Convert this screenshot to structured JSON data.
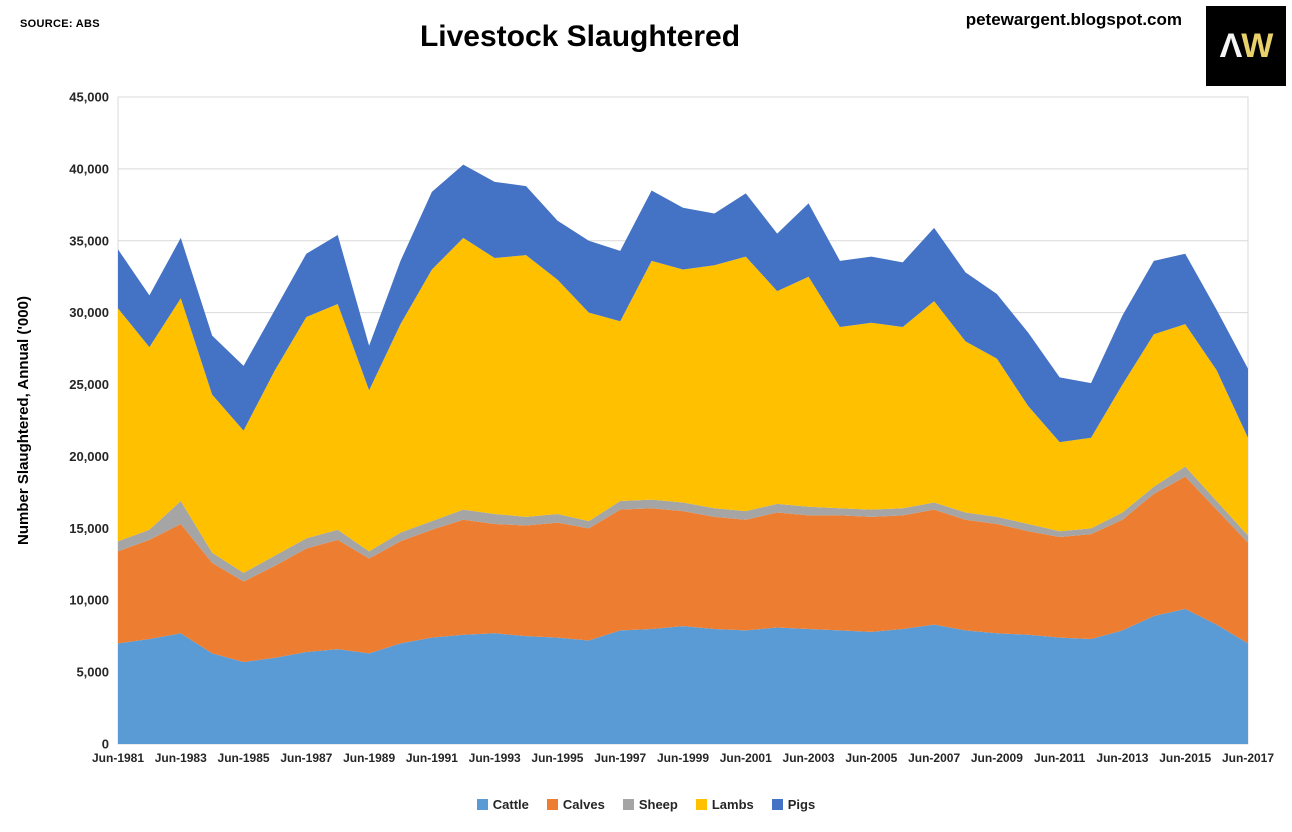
{
  "header": {
    "source": "SOURCE: ABS",
    "title": "Livestock Slaughtered",
    "watermark": "petewargent.blogspot.com",
    "logo": {
      "letter1": "Λ",
      "letter2": "W",
      "bg": "#000000"
    }
  },
  "chart_data": {
    "type": "area",
    "stacked": true,
    "title": "Livestock Slaughtered",
    "ylabel": "Number Slaughtered, Annual ('000)",
    "ylim": [
      0,
      45000
    ],
    "ytick_step": 5000,
    "grid": true,
    "legend_position": "bottom",
    "x_tick_every": 2,
    "x": [
      "Jun-1981",
      "Jun-1982",
      "Jun-1983",
      "Jun-1984",
      "Jun-1985",
      "Jun-1986",
      "Jun-1987",
      "Jun-1988",
      "Jun-1989",
      "Jun-1990",
      "Jun-1991",
      "Jun-1992",
      "Jun-1993",
      "Jun-1994",
      "Jun-1995",
      "Jun-1996",
      "Jun-1997",
      "Jun-1998",
      "Jun-1999",
      "Jun-2000",
      "Jun-2001",
      "Jun-2002",
      "Jun-2003",
      "Jun-2004",
      "Jun-2005",
      "Jun-2006",
      "Jun-2007",
      "Jun-2008",
      "Jun-2009",
      "Jun-2010",
      "Jun-2011",
      "Jun-2012",
      "Jun-2013",
      "Jun-2014",
      "Jun-2015",
      "Jun-2016",
      "Jun-2017"
    ],
    "series": [
      {
        "name": "Cattle",
        "color": "#5B9BD5",
        "values": [
          7000,
          7300,
          7700,
          6300,
          5700,
          6000,
          6400,
          6600,
          6300,
          7000,
          7400,
          7600,
          7700,
          7500,
          7400,
          7200,
          7900,
          8000,
          8200,
          8000,
          7900,
          8100,
          8000,
          7900,
          7800,
          8000,
          8300,
          7900,
          7700,
          7600,
          7400,
          7300,
          7900,
          8900,
          9400,
          8300,
          7000
        ]
      },
      {
        "name": "Calves",
        "color": "#ED7D31",
        "values": [
          6400,
          6900,
          7600,
          6300,
          5600,
          6400,
          7200,
          7600,
          6600,
          7100,
          7500,
          8000,
          7600,
          7700,
          8000,
          7800,
          8400,
          8400,
          8000,
          7800,
          7700,
          8000,
          7900,
          8000,
          8000,
          7900,
          8000,
          7700,
          7600,
          7200,
          7000,
          7300,
          7700,
          8500,
          9200,
          8000,
          7000
        ]
      },
      {
        "name": "Sheep",
        "color": "#A5A5A5",
        "values": [
          700,
          700,
          1600,
          700,
          600,
          700,
          700,
          700,
          500,
          600,
          600,
          700,
          700,
          600,
          600,
          500,
          600,
          600,
          600,
          600,
          600,
          600,
          600,
          500,
          500,
          500,
          500,
          500,
          500,
          500,
          400,
          400,
          500,
          500,
          700,
          600,
          500
        ]
      },
      {
        "name": "Lambs",
        "color": "#FFC000",
        "values": [
          16200,
          12700,
          14100,
          11000,
          9900,
          12900,
          15400,
          15700,
          11200,
          14500,
          17500,
          18900,
          17800,
          18200,
          16300,
          14500,
          12500,
          16600,
          16200,
          16900,
          17700,
          14800,
          16000,
          12600,
          13000,
          12600,
          14000,
          11900,
          11000,
          8200,
          6200,
          6300,
          8900,
          10600,
          9900,
          9100,
          6800
        ]
      },
      {
        "name": "Pigs",
        "color": "#4472C4",
        "values": [
          4100,
          3600,
          4200,
          4100,
          4500,
          4200,
          4400,
          4800,
          3100,
          4400,
          5400,
          5100,
          5300,
          4800,
          4100,
          5000,
          4900,
          4900,
          4300,
          3600,
          4400,
          4000,
          5100,
          4600,
          4600,
          4500,
          5100,
          4800,
          4500,
          5100,
          4500,
          3800,
          4800,
          5100,
          4900,
          4200,
          4800
        ]
      }
    ]
  }
}
